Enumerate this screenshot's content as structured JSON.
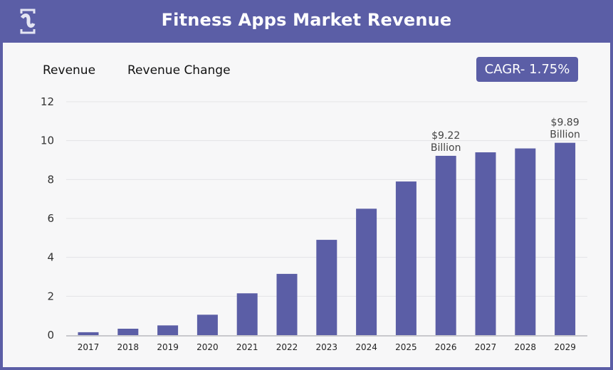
{
  "header": {
    "title": "Fitness Apps Market Revenue",
    "logo_icon": "brand-logo-icon"
  },
  "legend": {
    "items": [
      "Revenue",
      "Revenue Change"
    ]
  },
  "badge": {
    "cagr": "CAGR- 1.75%"
  },
  "colors": {
    "brand": "#5b5ea6",
    "bar": "#5b5ea6",
    "background": "#f7f7f8"
  },
  "chart_data": {
    "type": "bar",
    "title": "Fitness Apps Market Revenue",
    "categories": [
      "2017",
      "2018",
      "2019",
      "2020",
      "2021",
      "2022",
      "2023",
      "2024",
      "2025",
      "2026",
      "2027",
      "2028",
      "2029"
    ],
    "series": [
      {
        "name": "Revenue",
        "values": [
          0.15,
          0.33,
          0.5,
          1.05,
          2.15,
          3.15,
          4.9,
          6.5,
          7.9,
          9.22,
          9.4,
          9.6,
          9.89
        ]
      }
    ],
    "ylim": [
      0,
      12
    ],
    "yticks": [
      "0",
      "2",
      "4",
      "6",
      "8",
      "10",
      "12"
    ],
    "grid": true,
    "data_labels": [
      {
        "category": "2026",
        "line1": "$9.22",
        "line2": "Billion"
      },
      {
        "category": "2029",
        "line1": "$9.89",
        "line2": "Billion"
      }
    ]
  }
}
